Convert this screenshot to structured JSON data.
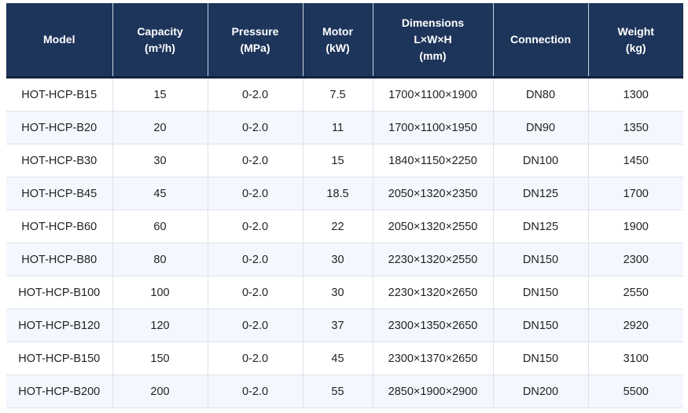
{
  "table": {
    "headers": [
      {
        "lines": [
          "Model"
        ]
      },
      {
        "lines": [
          "Capacity",
          "(m³/h)"
        ]
      },
      {
        "lines": [
          "Pressure",
          "(MPa)"
        ]
      },
      {
        "lines": [
          "Motor",
          "(kW)"
        ]
      },
      {
        "lines": [
          "Dimensions",
          "L×W×H",
          "(mm)"
        ]
      },
      {
        "lines": [
          "Connection"
        ]
      },
      {
        "lines": [
          "Weight",
          "(kg)"
        ]
      }
    ],
    "rows": [
      [
        "HOT-HCP-B15",
        "15",
        "0-2.0",
        "7.5",
        "1700×1100×1900",
        "DN80",
        "1300"
      ],
      [
        "HOT-HCP-B20",
        "20",
        "0-2.0",
        "11",
        "1700×1100×1950",
        "DN90",
        "1350"
      ],
      [
        "HOT-HCP-B30",
        "30",
        "0-2.0",
        "15",
        "1840×1150×2250",
        "DN100",
        "1450"
      ],
      [
        "HOT-HCP-B45",
        "45",
        "0-2.0",
        "18.5",
        "2050×1320×2350",
        "DN125",
        "1700"
      ],
      [
        "HOT-HCP-B60",
        "60",
        "0-2.0",
        "22",
        "2050×1320×2550",
        "DN125",
        "1900"
      ],
      [
        "HOT-HCP-B80",
        "80",
        "0-2.0",
        "30",
        "2230×1320×2550",
        "DN150",
        "2300"
      ],
      [
        "HOT-HCP-B100",
        "100",
        "0-2.0",
        "30",
        "2230×1320×2650",
        "DN150",
        "2550"
      ],
      [
        "HOT-HCP-B120",
        "120",
        "0-2.0",
        "37",
        "2300×1350×2650",
        "DN150",
        "2920"
      ],
      [
        "HOT-HCP-B150",
        "150",
        "0-2.0",
        "45",
        "2300×1370×2650",
        "DN150",
        "3100"
      ],
      [
        "HOT-HCP-B200",
        "200",
        "0-2.0",
        "55",
        "2850×1900×2900",
        "DN200",
        "5500"
      ]
    ]
  },
  "colors": {
    "header_bg": "#1e355b",
    "header_text": "#ffffff",
    "row_alt_bg": "#f4f7fd"
  }
}
